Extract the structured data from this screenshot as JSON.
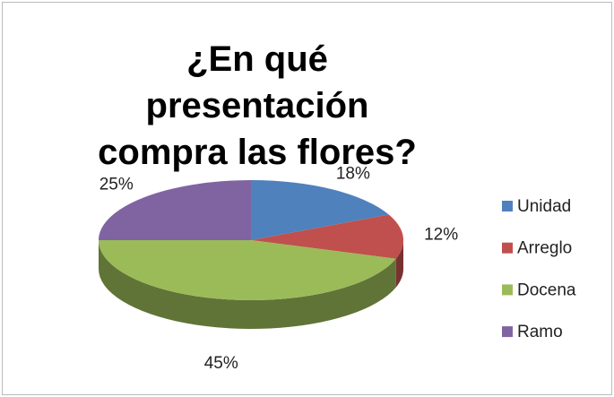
{
  "chart_data": {
    "type": "pie",
    "title": "¿En qué presentación compra las flores?",
    "categories": [
      "Unidad",
      "Arreglo",
      "Docena",
      "Ramo"
    ],
    "values": [
      18,
      12,
      45,
      25
    ],
    "value_labels": [
      "18%",
      "12%",
      "45%",
      "25%"
    ],
    "colors": [
      "#4f81bd",
      "#c0504d",
      "#9bbb59",
      "#8064a2"
    ],
    "legend": "right"
  }
}
